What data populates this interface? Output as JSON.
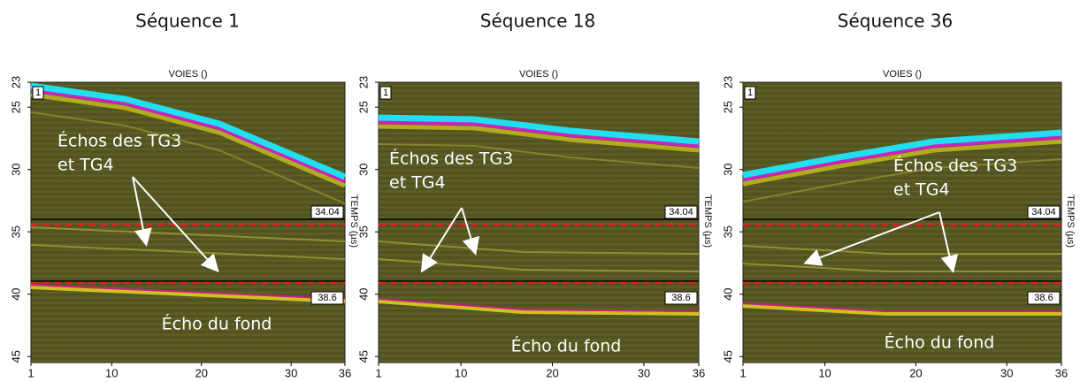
{
  "panels": [
    {
      "title": "Séquence 1",
      "x_axis_title": "VOIES ()",
      "y_axis_title": "TEMPS (µs)",
      "y_tick_labels": [
        "23",
        "25",
        "30",
        "35",
        "40",
        "45"
      ],
      "x_tick_labels": [
        "1",
        "10",
        "20",
        "30",
        "36"
      ],
      "channel_marker": "1",
      "gates": [
        "34.04",
        "38.6"
      ],
      "annotation": [
        "Échos des TG3",
        "et TG4"
      ],
      "bottom_echo": "Écho du fond"
    },
    {
      "title": "Séquence 18",
      "x_axis_title": "VOIES ()",
      "y_axis_title": "TEMPS (µs)",
      "y_tick_labels": [
        "23",
        "25",
        "30",
        "35",
        "40",
        "45"
      ],
      "x_tick_labels": [
        "1",
        "10",
        "20",
        "30",
        "36"
      ],
      "channel_marker": "1",
      "gates": [
        "34.04",
        "38.6"
      ],
      "annotation": [
        "Échos des TG3",
        "et TG4"
      ],
      "bottom_echo": "Écho du fond"
    },
    {
      "title": "Séquence 36",
      "x_axis_title": "VOIES ()",
      "y_axis_title": "TEMPS (µs)",
      "y_tick_labels": [
        "23",
        "25",
        "30",
        "35",
        "40",
        "45"
      ],
      "x_tick_labels": [
        "1",
        "10",
        "20",
        "30",
        "36"
      ],
      "channel_marker": "1",
      "gates": [
        "34.04",
        "38.6"
      ],
      "annotation": [
        "Échos des TG3",
        "et TG4"
      ],
      "bottom_echo": "Écho du fond"
    }
  ]
}
